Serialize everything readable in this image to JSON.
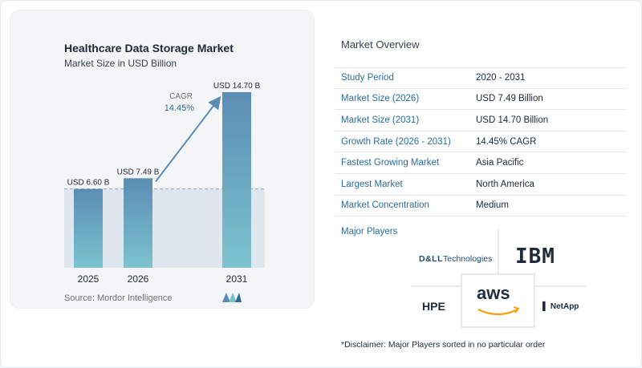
{
  "chart_data": {
    "type": "bar",
    "title": "Healthcare Data Storage Market",
    "subtitle": "Market Size in USD Billion",
    "categories": [
      "2025",
      "2026",
      "2031"
    ],
    "values": [
      6.6,
      7.49,
      14.7
    ],
    "value_labels": [
      "USD 6.60 B",
      "USD 7.49 B",
      "USD 14.70 B"
    ],
    "cagr_label": "CAGR",
    "cagr_value": "14.45%",
    "ylim": [
      0,
      15.5
    ],
    "grid": false,
    "colors": {
      "bar_top": "#5b8db4",
      "bar_bottom": "#7cc3cf",
      "reference_fill": "#dfe6ee",
      "arrow": "#5b8db4"
    }
  },
  "source": "Source:  Mordor Intelligence",
  "overview": {
    "title": "Market Overview",
    "rows": [
      {
        "label": "Study Period",
        "value": "2020 - 2031"
      },
      {
        "label": "Market Size (2026)",
        "value": "USD 7.49 Billion"
      },
      {
        "label": "Market Size (2031)",
        "value": "USD 14.70 Billion"
      },
      {
        "label": "Growth Rate (2026 - 2031)",
        "value": "14.45% CAGR"
      },
      {
        "label": "Fastest Growing Market",
        "value": "Asia Pacific"
      },
      {
        "label": "Largest Market",
        "value": "North America"
      },
      {
        "label": "Market Concentration",
        "value": "Medium"
      }
    ]
  },
  "players": {
    "title": "Major Players",
    "dell_bold": "D&LL",
    "dell_rest": "Technologies",
    "ibm": "IBM",
    "hpe": "HPE",
    "aws": "aws",
    "netapp": "▌ NetApp"
  },
  "disclaimer": "*Disclaimer: Major Players sorted in no particular order"
}
